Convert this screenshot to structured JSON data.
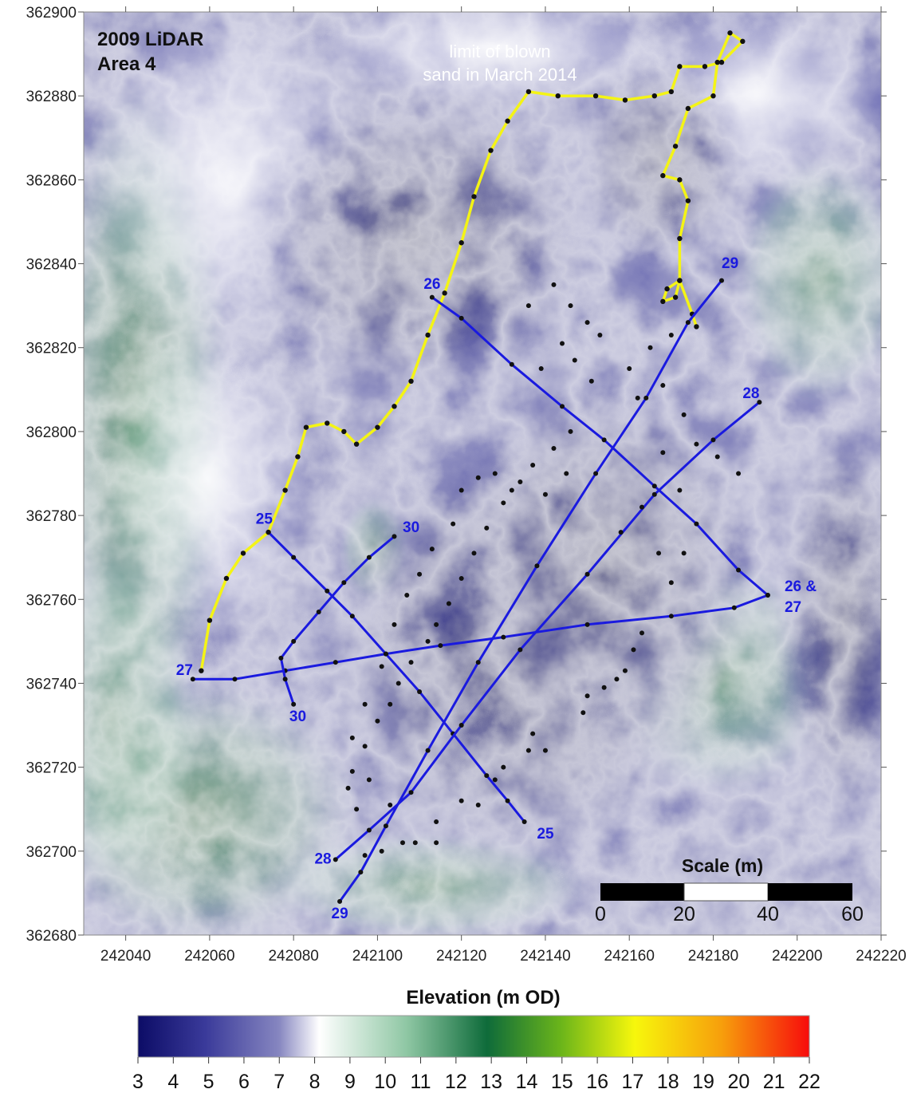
{
  "map": {
    "title_line1": "2009 LiDAR",
    "title_line2": "Area 4",
    "sand_note_line1": "limit of blown",
    "sand_note_line2": "sand in March 2014",
    "xlim": [
      242030,
      242220
    ],
    "ylim": [
      362680,
      362900
    ],
    "x_ticks": [
      "242040",
      "242060",
      "242080",
      "242100",
      "242120",
      "242140",
      "242160",
      "242180",
      "242200",
      "242220"
    ],
    "y_ticks": [
      "362900",
      "362880",
      "362860",
      "362840",
      "362820",
      "362800",
      "362780",
      "362760",
      "362740",
      "362720",
      "362700",
      "362680"
    ],
    "line_color": "#1a1adf",
    "sand_limit_color": "#f4f415",
    "survey_lines": [
      {
        "name": "25",
        "labels": [
          {
            "text": "25",
            "x": 242071,
            "y": 362778
          },
          {
            "text": "25",
            "x": 242138,
            "y": 362703
          }
        ],
        "points": [
          [
            242074,
            362776
          ],
          [
            242080,
            362770
          ],
          [
            242088,
            362762
          ],
          [
            242094,
            362756
          ],
          [
            242102,
            362747
          ],
          [
            242110,
            362738
          ],
          [
            242118,
            362728
          ],
          [
            242126,
            362718
          ],
          [
            242131,
            362712
          ],
          [
            242135,
            362707
          ]
        ]
      },
      {
        "name": "26 & 27",
        "labels": [
          {
            "text": "26",
            "x": 242111,
            "y": 362834
          },
          {
            "text": "26 &",
            "x": 242197,
            "y": 362762
          },
          {
            "text": "27",
            "x": 242197,
            "y": 362757
          }
        ],
        "points": [
          [
            242113,
            362832
          ],
          [
            242120,
            362827
          ],
          [
            242132,
            362816
          ],
          [
            242144,
            362806
          ],
          [
            242154,
            362798
          ],
          [
            242166,
            362787
          ],
          [
            242176,
            362778
          ],
          [
            242186,
            362767
          ],
          [
            242193,
            362761
          ]
        ]
      },
      {
        "name": "27",
        "labels": [
          {
            "text": "27",
            "x": 242052,
            "y": 362742
          }
        ],
        "points": [
          [
            242056,
            362741
          ],
          [
            242066,
            362741
          ],
          [
            242078,
            362743
          ],
          [
            242090,
            362745
          ],
          [
            242102,
            362747
          ],
          [
            242115,
            362749
          ],
          [
            242130,
            362751
          ],
          [
            242150,
            362754
          ],
          [
            242170,
            362756
          ],
          [
            242185,
            362758
          ],
          [
            242193,
            362761
          ]
        ]
      },
      {
        "name": "28",
        "labels": [
          {
            "text": "28",
            "x": 242187,
            "y": 362808
          },
          {
            "text": "28",
            "x": 242085,
            "y": 362697
          }
        ],
        "points": [
          [
            242090,
            362698
          ],
          [
            242098,
            362705
          ],
          [
            242108,
            362714
          ],
          [
            242120,
            362730
          ],
          [
            242134,
            362748
          ],
          [
            242150,
            362766
          ],
          [
            242166,
            362785
          ],
          [
            242180,
            362798
          ],
          [
            242191,
            362807
          ]
        ]
      },
      {
        "name": "29",
        "labels": [
          {
            "text": "29",
            "x": 242182,
            "y": 362839
          },
          {
            "text": "29",
            "x": 242089,
            "y": 362684
          }
        ],
        "points": [
          [
            242091,
            362688
          ],
          [
            242096,
            362695
          ],
          [
            242102,
            362706
          ],
          [
            242112,
            362724
          ],
          [
            242124,
            362745
          ],
          [
            242138,
            362768
          ],
          [
            242152,
            362790
          ],
          [
            242164,
            362808
          ],
          [
            242174,
            362826
          ],
          [
            242182,
            362836
          ]
        ]
      },
      {
        "name": "30",
        "labels": [
          {
            "text": "30",
            "x": 242106,
            "y": 362776
          },
          {
            "text": "30",
            "x": 242079,
            "y": 362731
          }
        ],
        "points": [
          [
            242080,
            362735
          ],
          [
            242078,
            362741
          ],
          [
            242077,
            362746
          ],
          [
            242080,
            362750
          ],
          [
            242086,
            362757
          ],
          [
            242092,
            362764
          ],
          [
            242098,
            362770
          ],
          [
            242104,
            362775
          ]
        ]
      }
    ],
    "sand_limit": [
      [
        242058,
        362743
      ],
      [
        242060,
        362755
      ],
      [
        242064,
        362765
      ],
      [
        242068,
        362771
      ],
      [
        242074,
        362776
      ],
      [
        242078,
        362786
      ],
      [
        242081,
        362794
      ],
      [
        242083,
        362801
      ],
      [
        242088,
        362802
      ],
      [
        242092,
        362800
      ],
      [
        242095,
        362797
      ],
      [
        242100,
        362801
      ],
      [
        242104,
        362806
      ],
      [
        242108,
        362812
      ],
      [
        242112,
        362823
      ],
      [
        242116,
        362833
      ],
      [
        242120,
        362845
      ],
      [
        242123,
        362856
      ],
      [
        242127,
        362867
      ],
      [
        242131,
        362874
      ],
      [
        242136,
        362881
      ],
      [
        242143,
        362880
      ],
      [
        242152,
        362880
      ],
      [
        242159,
        362879
      ],
      [
        242166,
        362880
      ],
      [
        242170,
        362881
      ],
      [
        242172,
        362887
      ],
      [
        242178,
        362887
      ],
      [
        242182,
        362888
      ],
      [
        242187,
        362893
      ],
      [
        242184,
        362895
      ],
      [
        242181,
        362888
      ],
      [
        242180,
        362880
      ],
      [
        242174,
        362877
      ],
      [
        242171,
        362868
      ],
      [
        242168,
        362861
      ],
      [
        242172,
        362860
      ],
      [
        242174,
        362855
      ],
      [
        242172,
        362846
      ],
      [
        242172,
        362836
      ],
      [
        242171,
        362832
      ],
      [
        242168,
        362831
      ],
      [
        242169,
        362834
      ],
      [
        242172,
        362836
      ],
      [
        242175,
        362828
      ],
      [
        242176,
        362825
      ]
    ],
    "sample_points": [
      [
        242136,
        362830
      ],
      [
        242142,
        362835
      ],
      [
        242146,
        362830
      ],
      [
        242150,
        362826
      ],
      [
        242144,
        362821
      ],
      [
        242153,
        362823
      ],
      [
        242139,
        362815
      ],
      [
        242147,
        362817
      ],
      [
        242151,
        362812
      ],
      [
        242160,
        362815
      ],
      [
        242165,
        362820
      ],
      [
        242170,
        362823
      ],
      [
        242162,
        362808
      ],
      [
        242168,
        362811
      ],
      [
        242173,
        362804
      ],
      [
        242168,
        362795
      ],
      [
        242176,
        362797
      ],
      [
        242181,
        362794
      ],
      [
        242186,
        362790
      ],
      [
        242172,
        362786
      ],
      [
        242163,
        362782
      ],
      [
        242158,
        362776
      ],
      [
        242167,
        362771
      ],
      [
        242173,
        362771
      ],
      [
        242170,
        362764
      ],
      [
        242163,
        362752
      ],
      [
        242159,
        362743
      ],
      [
        242154,
        362739
      ],
      [
        242149,
        362733
      ],
      [
        242136,
        362724
      ],
      [
        242128,
        362717
      ],
      [
        242120,
        362712
      ],
      [
        242114,
        362707
      ],
      [
        242106,
        362702
      ],
      [
        242101,
        362700
      ],
      [
        242097,
        362699
      ],
      [
        242095,
        362710
      ],
      [
        242093,
        362715
      ],
      [
        242094,
        362719
      ],
      [
        242097,
        362725
      ],
      [
        242100,
        362731
      ],
      [
        242103,
        362735
      ],
      [
        242105,
        362740
      ],
      [
        242108,
        362745
      ],
      [
        242112,
        362750
      ],
      [
        242114,
        362754
      ],
      [
        242117,
        362759
      ],
      [
        242120,
        362765
      ],
      [
        242123,
        362771
      ],
      [
        242126,
        362777
      ],
      [
        242130,
        362783
      ],
      [
        242134,
        362788
      ],
      [
        242137,
        362792
      ],
      [
        242142,
        362796
      ],
      [
        242146,
        362800
      ],
      [
        242145,
        362790
      ],
      [
        242140,
        362785
      ],
      [
        242132,
        362786
      ],
      [
        242128,
        362790
      ],
      [
        242124,
        362789
      ],
      [
        242120,
        362786
      ],
      [
        242118,
        362778
      ],
      [
        242113,
        362772
      ],
      [
        242110,
        362766
      ],
      [
        242107,
        362761
      ],
      [
        242104,
        362754
      ],
      [
        242101,
        362744
      ],
      [
        242097,
        362735
      ],
      [
        242094,
        362727
      ],
      [
        242098,
        362717
      ],
      [
        242103,
        362711
      ],
      [
        242109,
        362702
      ],
      [
        242114,
        362702
      ],
      [
        242124,
        362711
      ],
      [
        242130,
        362720
      ],
      [
        242137,
        362728
      ],
      [
        242150,
        362737
      ],
      [
        242157,
        362741
      ],
      [
        242161,
        362748
      ],
      [
        242140,
        362724
      ]
    ],
    "scale_bar": {
      "title": "Scale (m)",
      "ticks": [
        "0",
        "20",
        "40",
        "60"
      ]
    },
    "colorbar": {
      "title": "Elevation (m OD)",
      "ticks": [
        "3",
        "4",
        "5",
        "6",
        "7",
        "8",
        "9",
        "10",
        "11",
        "12",
        "13",
        "14",
        "15",
        "16",
        "17",
        "18",
        "19",
        "20",
        "21",
        "22"
      ],
      "stops": [
        "#0c0c66",
        "#3a3a9a",
        "#8686c0",
        "#ffffff",
        "#8fc7a4",
        "#0e6b3a",
        "#6bb51a",
        "#f7f70c",
        "#f79e0c",
        "#f70c0c"
      ]
    }
  }
}
